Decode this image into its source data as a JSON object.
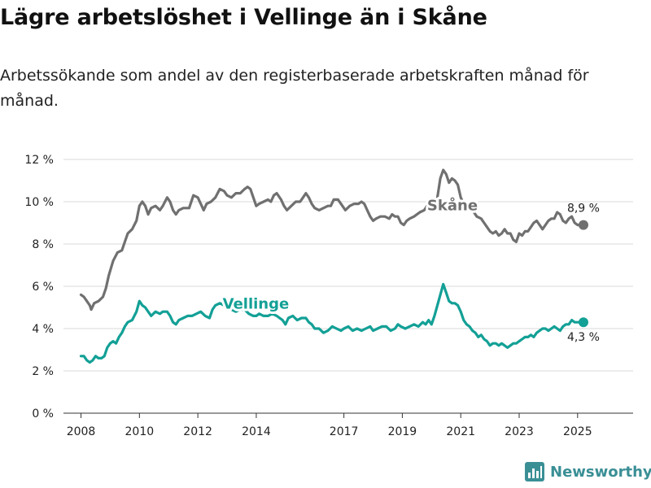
{
  "title": "Lägre arbetslöshet i Vellinge än i Skåne",
  "subtitle": "Arbetssökande som andel av den registerbaserade arbetskraften månad för månad.",
  "brand": {
    "name": "Newsworthy",
    "color": "#3a8f95"
  },
  "colors": {
    "skane": "#707070",
    "vellinge": "#13a096",
    "grid": "#d8d8d8",
    "axis": "#333333"
  },
  "chart_data": {
    "type": "line",
    "title": "Lägre arbetslöshet i Vellinge än i Skåne",
    "xlabel": "",
    "ylabel": "",
    "xlim": [
      2007.4,
      2026.9
    ],
    "ylim": [
      0,
      12
    ],
    "grid": true,
    "legend": "direct labels",
    "x_ticks": [
      2008,
      2010,
      2012,
      2014,
      2017,
      2019,
      2021,
      2023,
      2025
    ],
    "x_tick_labels": [
      "2008",
      "2010",
      "2012",
      "2014",
      "2017",
      "2019",
      "2021",
      "2023",
      "2025"
    ],
    "y_ticks": [
      0,
      2,
      4,
      6,
      8,
      10,
      12
    ],
    "y_tick_labels": [
      "0 %",
      "2 %",
      "4 %",
      "6 %",
      "8 %",
      "10 %",
      "12 %"
    ],
    "series": [
      {
        "name": "Skåne",
        "label": "Skåne",
        "end_label": "8,9 %",
        "points": [
          [
            2008.0,
            5.6
          ],
          [
            2008.1,
            5.5
          ],
          [
            2008.2,
            5.3
          ],
          [
            2008.3,
            5.1
          ],
          [
            2008.35,
            4.9
          ],
          [
            2008.45,
            5.2
          ],
          [
            2008.6,
            5.3
          ],
          [
            2008.75,
            5.5
          ],
          [
            2008.85,
            5.9
          ],
          [
            2008.95,
            6.5
          ],
          [
            2009.1,
            7.2
          ],
          [
            2009.25,
            7.6
          ],
          [
            2009.4,
            7.7
          ],
          [
            2009.5,
            8.1
          ],
          [
            2009.6,
            8.5
          ],
          [
            2009.75,
            8.7
          ],
          [
            2009.9,
            9.1
          ],
          [
            2010.0,
            9.8
          ],
          [
            2010.1,
            10.0
          ],
          [
            2010.2,
            9.8
          ],
          [
            2010.3,
            9.4
          ],
          [
            2010.4,
            9.7
          ],
          [
            2010.55,
            9.8
          ],
          [
            2010.7,
            9.6
          ],
          [
            2010.8,
            9.8
          ],
          [
            2010.95,
            10.2
          ],
          [
            2011.05,
            10.0
          ],
          [
            2011.15,
            9.6
          ],
          [
            2011.25,
            9.4
          ],
          [
            2011.35,
            9.6
          ],
          [
            2011.5,
            9.7
          ],
          [
            2011.7,
            9.7
          ],
          [
            2011.85,
            10.3
          ],
          [
            2012.0,
            10.2
          ],
          [
            2012.1,
            9.9
          ],
          [
            2012.2,
            9.6
          ],
          [
            2012.3,
            9.9
          ],
          [
            2012.45,
            10.0
          ],
          [
            2012.6,
            10.2
          ],
          [
            2012.75,
            10.6
          ],
          [
            2012.9,
            10.5
          ],
          [
            2013.0,
            10.3
          ],
          [
            2013.15,
            10.2
          ],
          [
            2013.3,
            10.4
          ],
          [
            2013.45,
            10.4
          ],
          [
            2013.6,
            10.6
          ],
          [
            2013.7,
            10.7
          ],
          [
            2013.8,
            10.6
          ],
          [
            2013.9,
            10.2
          ],
          [
            2014.0,
            9.8
          ],
          [
            2014.1,
            9.9
          ],
          [
            2014.25,
            10.0
          ],
          [
            2014.4,
            10.1
          ],
          [
            2014.5,
            10.0
          ],
          [
            2014.6,
            10.3
          ],
          [
            2014.7,
            10.4
          ],
          [
            2014.85,
            10.1
          ],
          [
            2014.95,
            9.8
          ],
          [
            2015.05,
            9.6
          ],
          [
            2015.2,
            9.8
          ],
          [
            2015.35,
            10.0
          ],
          [
            2015.5,
            10.0
          ],
          [
            2015.6,
            10.2
          ],
          [
            2015.7,
            10.4
          ],
          [
            2015.8,
            10.2
          ],
          [
            2015.9,
            9.9
          ],
          [
            2016.0,
            9.7
          ],
          [
            2016.15,
            9.6
          ],
          [
            2016.3,
            9.7
          ],
          [
            2016.45,
            9.8
          ],
          [
            2016.55,
            9.8
          ],
          [
            2016.65,
            10.1
          ],
          [
            2016.8,
            10.1
          ],
          [
            2016.95,
            9.8
          ],
          [
            2017.05,
            9.6
          ],
          [
            2017.2,
            9.8
          ],
          [
            2017.35,
            9.9
          ],
          [
            2017.5,
            9.9
          ],
          [
            2017.6,
            10.0
          ],
          [
            2017.7,
            9.9
          ],
          [
            2017.8,
            9.6
          ],
          [
            2017.9,
            9.3
          ],
          [
            2018.0,
            9.1
          ],
          [
            2018.1,
            9.2
          ],
          [
            2018.25,
            9.3
          ],
          [
            2018.4,
            9.3
          ],
          [
            2018.55,
            9.2
          ],
          [
            2018.65,
            9.4
          ],
          [
            2018.75,
            9.3
          ],
          [
            2018.85,
            9.3
          ],
          [
            2018.95,
            9.0
          ],
          [
            2019.05,
            8.9
          ],
          [
            2019.15,
            9.1
          ],
          [
            2019.25,
            9.2
          ],
          [
            2019.4,
            9.3
          ],
          [
            2019.5,
            9.4
          ],
          [
            2019.6,
            9.5
          ],
          [
            2019.75,
            9.6
          ],
          [
            2019.85,
            9.8
          ],
          [
            2019.95,
            10.0
          ],
          [
            2020.1,
            9.8
          ],
          [
            2020.2,
            10.2
          ],
          [
            2020.3,
            11.1
          ],
          [
            2020.4,
            11.5
          ],
          [
            2020.5,
            11.3
          ],
          [
            2020.6,
            10.9
          ],
          [
            2020.7,
            11.1
          ],
          [
            2020.8,
            11.0
          ],
          [
            2020.9,
            10.8
          ],
          [
            2021.0,
            10.2
          ],
          [
            2021.1,
            9.9
          ],
          [
            2021.2,
            9.9
          ],
          [
            2021.35,
            9.8
          ],
          [
            2021.45,
            9.5
          ],
          [
            2021.55,
            9.3
          ],
          [
            2021.7,
            9.2
          ],
          [
            2021.8,
            9.0
          ],
          [
            2021.9,
            8.8
          ],
          [
            2022.0,
            8.6
          ],
          [
            2022.1,
            8.5
          ],
          [
            2022.2,
            8.6
          ],
          [
            2022.3,
            8.4
          ],
          [
            2022.4,
            8.5
          ],
          [
            2022.5,
            8.7
          ],
          [
            2022.6,
            8.5
          ],
          [
            2022.7,
            8.5
          ],
          [
            2022.8,
            8.2
          ],
          [
            2022.9,
            8.1
          ],
          [
            2023.0,
            8.5
          ],
          [
            2023.1,
            8.4
          ],
          [
            2023.2,
            8.6
          ],
          [
            2023.3,
            8.6
          ],
          [
            2023.4,
            8.8
          ],
          [
            2023.5,
            9.0
          ],
          [
            2023.6,
            9.1
          ],
          [
            2023.7,
            8.9
          ],
          [
            2023.8,
            8.7
          ],
          [
            2023.9,
            8.9
          ],
          [
            2024.0,
            9.1
          ],
          [
            2024.1,
            9.2
          ],
          [
            2024.2,
            9.2
          ],
          [
            2024.3,
            9.5
          ],
          [
            2024.4,
            9.4
          ],
          [
            2024.5,
            9.1
          ],
          [
            2024.6,
            9.0
          ],
          [
            2024.7,
            9.2
          ],
          [
            2024.8,
            9.3
          ],
          [
            2024.9,
            9.0
          ],
          [
            2025.0,
            8.9
          ],
          [
            2025.1,
            8.9
          ],
          [
            2025.2,
            8.9
          ]
        ]
      },
      {
        "name": "Vellinge",
        "label": "Vellinge",
        "end_label": "4,3 %",
        "points": [
          [
            2008.0,
            2.7
          ],
          [
            2008.1,
            2.7
          ],
          [
            2008.2,
            2.5
          ],
          [
            2008.3,
            2.4
          ],
          [
            2008.4,
            2.5
          ],
          [
            2008.5,
            2.7
          ],
          [
            2008.6,
            2.6
          ],
          [
            2008.7,
            2.6
          ],
          [
            2008.8,
            2.7
          ],
          [
            2008.9,
            3.1
          ],
          [
            2009.0,
            3.3
          ],
          [
            2009.1,
            3.4
          ],
          [
            2009.2,
            3.3
          ],
          [
            2009.3,
            3.6
          ],
          [
            2009.4,
            3.8
          ],
          [
            2009.5,
            4.1
          ],
          [
            2009.6,
            4.3
          ],
          [
            2009.75,
            4.4
          ],
          [
            2009.9,
            4.8
          ],
          [
            2010.0,
            5.3
          ],
          [
            2010.1,
            5.1
          ],
          [
            2010.2,
            5.0
          ],
          [
            2010.3,
            4.8
          ],
          [
            2010.4,
            4.6
          ],
          [
            2010.55,
            4.8
          ],
          [
            2010.7,
            4.7
          ],
          [
            2010.8,
            4.8
          ],
          [
            2010.95,
            4.8
          ],
          [
            2011.05,
            4.6
          ],
          [
            2011.15,
            4.3
          ],
          [
            2011.25,
            4.2
          ],
          [
            2011.35,
            4.4
          ],
          [
            2011.5,
            4.5
          ],
          [
            2011.65,
            4.6
          ],
          [
            2011.8,
            4.6
          ],
          [
            2011.95,
            4.7
          ],
          [
            2012.1,
            4.8
          ],
          [
            2012.25,
            4.6
          ],
          [
            2012.4,
            4.5
          ],
          [
            2012.5,
            4.9
          ],
          [
            2012.6,
            5.1
          ],
          [
            2012.75,
            5.2
          ],
          [
            2012.9,
            5.1
          ],
          [
            2013.0,
            5.0
          ],
          [
            2013.15,
            4.9
          ],
          [
            2013.3,
            4.8
          ],
          [
            2013.45,
            4.9
          ],
          [
            2013.6,
            4.9
          ],
          [
            2013.75,
            4.7
          ],
          [
            2013.9,
            4.6
          ],
          [
            2014.0,
            4.6
          ],
          [
            2014.1,
            4.7
          ],
          [
            2014.25,
            4.6
          ],
          [
            2014.4,
            4.6
          ],
          [
            2014.55,
            4.7
          ],
          [
            2014.7,
            4.6
          ],
          [
            2014.8,
            4.5
          ],
          [
            2014.9,
            4.4
          ],
          [
            2015.0,
            4.2
          ],
          [
            2015.1,
            4.5
          ],
          [
            2015.25,
            4.6
          ],
          [
            2015.4,
            4.4
          ],
          [
            2015.55,
            4.5
          ],
          [
            2015.7,
            4.5
          ],
          [
            2015.8,
            4.3
          ],
          [
            2015.9,
            4.2
          ],
          [
            2016.0,
            4.0
          ],
          [
            2016.15,
            4.0
          ],
          [
            2016.3,
            3.8
          ],
          [
            2016.45,
            3.9
          ],
          [
            2016.6,
            4.1
          ],
          [
            2016.75,
            4.0
          ],
          [
            2016.9,
            3.9
          ],
          [
            2017.0,
            4.0
          ],
          [
            2017.15,
            4.1
          ],
          [
            2017.3,
            3.9
          ],
          [
            2017.45,
            4.0
          ],
          [
            2017.6,
            3.9
          ],
          [
            2017.75,
            4.0
          ],
          [
            2017.9,
            4.1
          ],
          [
            2018.0,
            3.9
          ],
          [
            2018.15,
            4.0
          ],
          [
            2018.3,
            4.1
          ],
          [
            2018.45,
            4.1
          ],
          [
            2018.6,
            3.9
          ],
          [
            2018.75,
            4.0
          ],
          [
            2018.85,
            4.2
          ],
          [
            2018.95,
            4.1
          ],
          [
            2019.1,
            4.0
          ],
          [
            2019.25,
            4.1
          ],
          [
            2019.4,
            4.2
          ],
          [
            2019.55,
            4.1
          ],
          [
            2019.7,
            4.3
          ],
          [
            2019.8,
            4.2
          ],
          [
            2019.9,
            4.4
          ],
          [
            2020.0,
            4.2
          ],
          [
            2020.1,
            4.6
          ],
          [
            2020.2,
            5.1
          ],
          [
            2020.3,
            5.6
          ],
          [
            2020.4,
            6.1
          ],
          [
            2020.5,
            5.7
          ],
          [
            2020.6,
            5.3
          ],
          [
            2020.7,
            5.2
          ],
          [
            2020.8,
            5.2
          ],
          [
            2020.9,
            5.1
          ],
          [
            2021.0,
            4.8
          ],
          [
            2021.1,
            4.4
          ],
          [
            2021.2,
            4.2
          ],
          [
            2021.3,
            4.1
          ],
          [
            2021.4,
            3.9
          ],
          [
            2021.5,
            3.8
          ],
          [
            2021.6,
            3.6
          ],
          [
            2021.7,
            3.7
          ],
          [
            2021.8,
            3.5
          ],
          [
            2021.9,
            3.4
          ],
          [
            2022.0,
            3.2
          ],
          [
            2022.1,
            3.3
          ],
          [
            2022.2,
            3.3
          ],
          [
            2022.3,
            3.2
          ],
          [
            2022.4,
            3.3
          ],
          [
            2022.5,
            3.2
          ],
          [
            2022.6,
            3.1
          ],
          [
            2022.7,
            3.2
          ],
          [
            2022.8,
            3.3
          ],
          [
            2022.9,
            3.3
          ],
          [
            2023.0,
            3.4
          ],
          [
            2023.1,
            3.5
          ],
          [
            2023.2,
            3.6
          ],
          [
            2023.3,
            3.6
          ],
          [
            2023.4,
            3.7
          ],
          [
            2023.5,
            3.6
          ],
          [
            2023.6,
            3.8
          ],
          [
            2023.7,
            3.9
          ],
          [
            2023.8,
            4.0
          ],
          [
            2023.9,
            4.0
          ],
          [
            2024.0,
            3.9
          ],
          [
            2024.1,
            4.0
          ],
          [
            2024.2,
            4.1
          ],
          [
            2024.3,
            4.0
          ],
          [
            2024.4,
            3.9
          ],
          [
            2024.5,
            4.1
          ],
          [
            2024.6,
            4.2
          ],
          [
            2024.7,
            4.2
          ],
          [
            2024.8,
            4.4
          ],
          [
            2024.9,
            4.3
          ],
          [
            2025.0,
            4.3
          ],
          [
            2025.1,
            4.3
          ],
          [
            2025.2,
            4.3
          ]
        ]
      }
    ]
  }
}
